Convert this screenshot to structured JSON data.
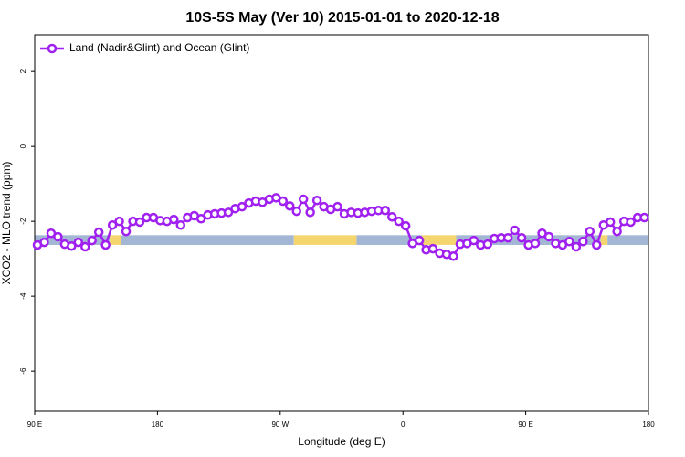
{
  "chart_data": {
    "type": "line",
    "title": "10S-5S May (Ver 10)   2015-01-01 to 2020-12-18",
    "x_label": "Longitude (deg E)",
    "y_label": "XCO2 - MLO trend (ppm)",
    "xlim": [
      90,
      540
    ],
    "xticks": [
      {
        "value": 90,
        "label": "90 E"
      },
      {
        "value": 180,
        "label": "180"
      },
      {
        "value": 270,
        "label": "90 W"
      },
      {
        "value": 360,
        "label": "0"
      },
      {
        "value": 450,
        "label": "90 E"
      },
      {
        "value": 540,
        "label": "180"
      }
    ],
    "ylim": [
      -7.07,
      2.98
    ],
    "yticks": [
      -6,
      -4,
      -2,
      0,
      2
    ],
    "legend": "top-left",
    "surface_band": {
      "y_range": [
        -2.63,
        -2.37
      ],
      "segments": [
        {
          "from": 90,
          "to": 145,
          "color": "#a3b6d4"
        },
        {
          "from": 145,
          "to": 153,
          "color": "#f5d66e"
        },
        {
          "from": 153,
          "to": 280,
          "color": "#a3b6d4"
        },
        {
          "from": 280,
          "to": 326,
          "color": "#f5d66e"
        },
        {
          "from": 326,
          "to": 374,
          "color": "#a3b6d4"
        },
        {
          "from": 374,
          "to": 399,
          "color": "#f5d66e"
        },
        {
          "from": 399,
          "to": 505,
          "color": "#a3b6d4"
        },
        {
          "from": 505,
          "to": 510,
          "color": "#f5d66e"
        },
        {
          "from": 510,
          "to": 540,
          "color": "#a3b6d4"
        }
      ]
    },
    "series": [
      {
        "name": "Land (Nadir&Glint) and Ocean (Glint)",
        "color": "#a020f0",
        "x": [
          92,
          97,
          102,
          107,
          112,
          117,
          122,
          127,
          132,
          137,
          142,
          147,
          152,
          157,
          162,
          167,
          172,
          177,
          182,
          187,
          192,
          197,
          202,
          207,
          212,
          217,
          222,
          227,
          232,
          237,
          242,
          247,
          252,
          257,
          262,
          267,
          272,
          277,
          282,
          287,
          292,
          297,
          302,
          307,
          312,
          317,
          322,
          327,
          332,
          337,
          342,
          347,
          352,
          357,
          362,
          367,
          372,
          377,
          382,
          387,
          392,
          397,
          402,
          407,
          412,
          417,
          422,
          427,
          432,
          437,
          442,
          447,
          452,
          457,
          462,
          467,
          472,
          477,
          482,
          487,
          492,
          497,
          502,
          507,
          512,
          517,
          522,
          527,
          532,
          537
        ],
        "values": [
          -2.63,
          -2.56,
          -2.32,
          -2.41,
          -2.61,
          -2.66,
          -2.56,
          -2.68,
          -2.51,
          -2.29,
          -2.63,
          -2.1,
          -2.0,
          -2.27,
          -2.0,
          -2.02,
          -1.9,
          -1.9,
          -1.98,
          -2.0,
          -1.95,
          -2.1,
          -1.9,
          -1.85,
          -1.93,
          -1.83,
          -1.8,
          -1.78,
          -1.76,
          -1.66,
          -1.61,
          -1.51,
          -1.46,
          -1.49,
          -1.41,
          -1.37,
          -1.46,
          -1.59,
          -1.73,
          -1.41,
          -1.76,
          -1.44,
          -1.61,
          -1.68,
          -1.61,
          -1.8,
          -1.76,
          -1.78,
          -1.76,
          -1.73,
          -1.71,
          -1.71,
          -1.88,
          -2.0,
          -2.12,
          -2.59,
          -2.51,
          -2.76,
          -2.73,
          -2.85,
          -2.88,
          -2.93,
          -2.61,
          -2.59,
          -2.51,
          -2.63,
          -2.61,
          -2.46,
          -2.44,
          -2.44,
          -2.24,
          -2.44,
          -2.63,
          -2.59,
          -2.32,
          -2.41,
          -2.59,
          -2.63,
          -2.54,
          -2.68,
          -2.54,
          -2.27,
          -2.63,
          -2.1,
          -2.02,
          -2.27,
          -2.0,
          -2.02,
          -1.9,
          -1.9
        ]
      }
    ]
  }
}
